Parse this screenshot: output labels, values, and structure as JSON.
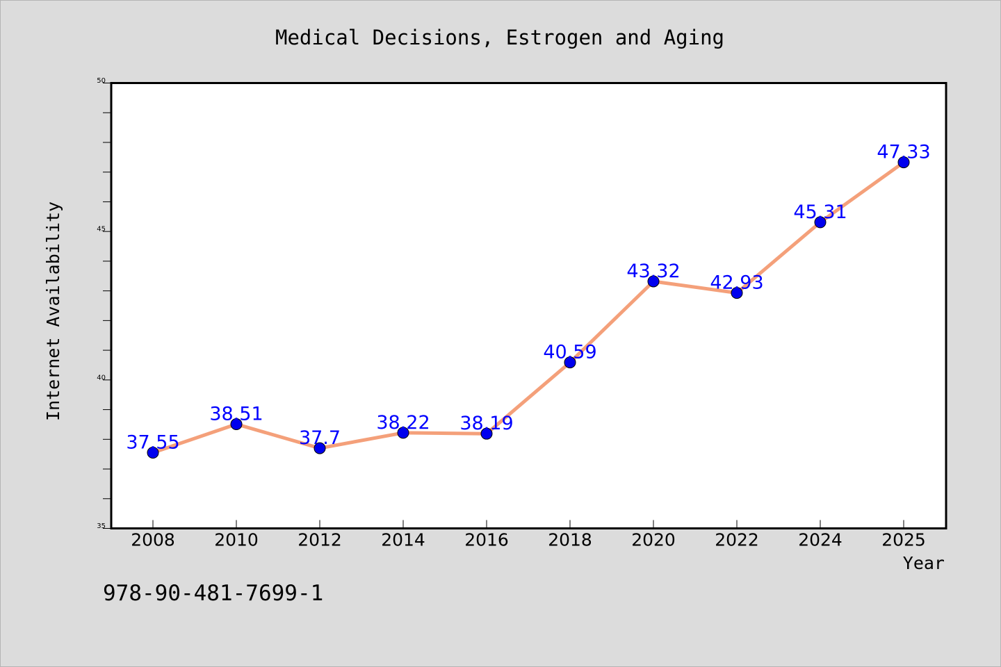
{
  "chart_data": {
    "type": "line",
    "title": "Medical Decisions, Estrogen and Aging",
    "xlabel": "Year",
    "ylabel": "Internet Availability",
    "categories": [
      "2008",
      "2010",
      "2012",
      "2014",
      "2016",
      "2018",
      "2020",
      "2022",
      "2024",
      "2025"
    ],
    "series": [
      {
        "values": [
          37.55,
          38.51,
          37.7,
          38.22,
          38.19,
          40.59,
          43.32,
          42.93,
          45.31,
          47.33
        ]
      }
    ],
    "data_labels": [
      "37.55",
      "38.51",
      "37.7",
      "38.22",
      "38.19",
      "40.59",
      "43.32",
      "42.93",
      "45.31",
      "47.33"
    ],
    "ylim": [
      35,
      50
    ],
    "y_ticks": [
      "35",
      "40",
      "45",
      "50"
    ],
    "grid": false,
    "line_color": "#f4a07a",
    "marker_color": "#0000ee",
    "label_color": "#0000ff"
  },
  "footer_text": "978-90-481-7699-1"
}
